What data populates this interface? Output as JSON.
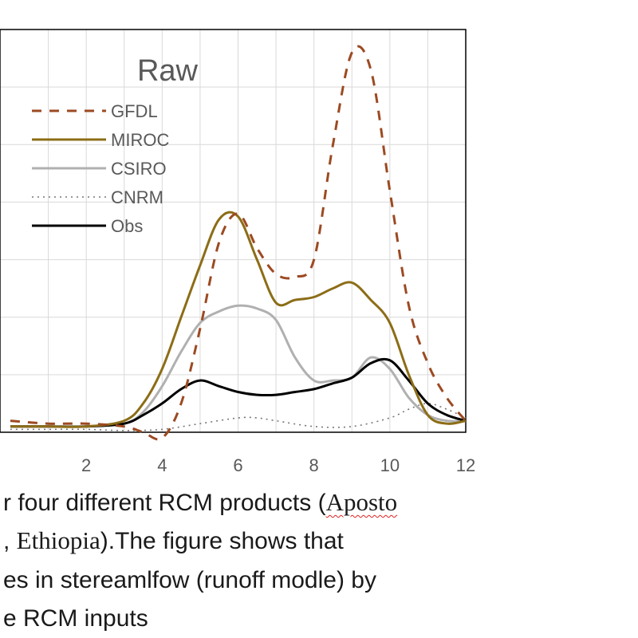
{
  "chart_data": {
    "type": "line",
    "title": "Raw",
    "x_ticks": [
      "2",
      "4",
      "6",
      "8",
      "10",
      "12"
    ],
    "xlim": [
      0,
      12
    ],
    "ylim": [
      0,
      7
    ],
    "grid": true,
    "legend_position": "top-left",
    "series": [
      {
        "name": "GFDL",
        "color": "#9c4a22",
        "style": "dashed",
        "x": [
          0,
          1,
          2,
          3,
          3.5,
          4,
          4.5,
          5,
          5.5,
          6,
          6.5,
          7,
          7.5,
          8,
          8.5,
          9,
          9.5,
          10,
          10.5,
          11,
          11.5,
          12
        ],
        "y": [
          0.2,
          0.15,
          0.15,
          0.1,
          0.0,
          -0.1,
          0.5,
          1.8,
          3.3,
          3.8,
          3.2,
          2.75,
          2.7,
          3.0,
          5.0,
          6.6,
          6.3,
          4.2,
          2.2,
          1.2,
          0.6,
          0.2
        ]
      },
      {
        "name": "MIROC",
        "color": "#8c6d17",
        "style": "solid",
        "x": [
          0,
          1,
          2,
          3,
          3.5,
          4,
          4.5,
          5,
          5.5,
          6,
          6.5,
          7,
          7.5,
          8,
          8.5,
          9,
          9.5,
          10,
          10.5,
          11,
          11.5,
          12
        ],
        "y": [
          0.1,
          0.1,
          0.1,
          0.2,
          0.5,
          1.1,
          2.0,
          2.9,
          3.7,
          3.75,
          3.0,
          2.25,
          2.3,
          2.35,
          2.5,
          2.6,
          2.3,
          1.9,
          1.0,
          0.3,
          0.15,
          0.2
        ]
      },
      {
        "name": "CSIRO",
        "color": "#b0b0b0",
        "style": "solid",
        "x": [
          0,
          1,
          2,
          3,
          3.5,
          4,
          4.5,
          5,
          5.5,
          6,
          6.5,
          7,
          7.5,
          8,
          8.5,
          9,
          9.5,
          10,
          10.5,
          11,
          11.5,
          12
        ],
        "y": [
          0.1,
          0.1,
          0.1,
          0.15,
          0.35,
          0.8,
          1.4,
          1.9,
          2.1,
          2.2,
          2.15,
          1.95,
          1.3,
          0.9,
          0.9,
          0.95,
          1.3,
          1.1,
          0.6,
          0.3,
          0.2,
          0.2
        ]
      },
      {
        "name": "CNRM",
        "color": "#777777",
        "style": "dotted",
        "x": [
          0,
          1,
          2,
          3,
          4,
          5,
          6,
          6.5,
          7,
          8,
          9,
          10,
          10.5,
          11,
          11.5,
          12
        ],
        "y": [
          0.05,
          0.05,
          0.05,
          0.03,
          0.05,
          0.15,
          0.25,
          0.25,
          0.2,
          0.1,
          0.1,
          0.25,
          0.4,
          0.5,
          0.4,
          0.25
        ]
      },
      {
        "name": "Obs",
        "color": "#000000",
        "style": "solid",
        "x": [
          0,
          1,
          2,
          3,
          3.5,
          4,
          4.5,
          5,
          5.5,
          6,
          6.5,
          7,
          7.5,
          8,
          8.5,
          9,
          9.5,
          10,
          10.5,
          11,
          11.5,
          12
        ],
        "y": [
          0.1,
          0.1,
          0.1,
          0.15,
          0.3,
          0.5,
          0.75,
          0.9,
          0.8,
          0.7,
          0.65,
          0.65,
          0.7,
          0.75,
          0.85,
          0.95,
          1.2,
          1.25,
          0.9,
          0.5,
          0.3,
          0.2
        ]
      }
    ]
  },
  "caption": {
    "line1_a": "r four different RCM products (",
    "line1_b": "Aposto",
    "line2_a": ", ",
    "line2_b": "Ethiopia",
    "line2_c": ").The figure shows that",
    "line3": "es in stereamlfow (runoff modle) by",
    "line4": "e RCM inputs"
  }
}
